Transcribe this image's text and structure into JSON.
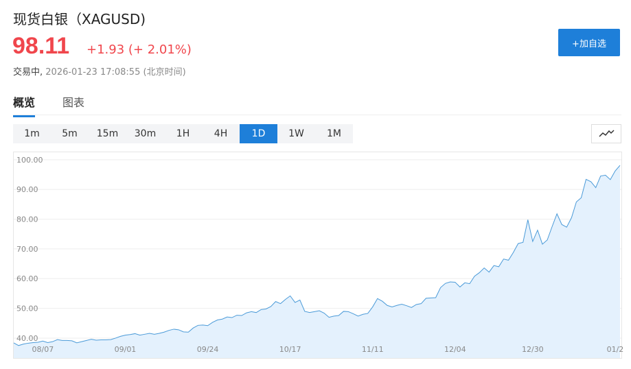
{
  "header": {
    "title": "现货白银（XAGUSD)",
    "price": "98.11",
    "change": "+1.93",
    "change_pct": "(+ 2.01%)",
    "status": "交易中,",
    "time": "2026-01-23 17:08:55",
    "timezone": "(北京时间)",
    "button": "+加自选"
  },
  "tabs": {
    "items": [
      "概览",
      "图表"
    ],
    "active": 0
  },
  "periods": {
    "items": [
      "1m",
      "5m",
      "15m",
      "30m",
      "1H",
      "4H",
      "1D",
      "1W",
      "1M"
    ],
    "active": 6
  },
  "chart_data": {
    "type": "area",
    "color": "#4a9ad8",
    "fill": "#e4f1fd",
    "grid": true,
    "categories": [
      null,
      null,
      null,
      null,
      null,
      null,
      "08/07",
      null,
      null,
      null,
      null,
      null,
      null,
      null,
      null,
      null,
      null,
      null,
      null,
      null,
      null,
      null,
      null,
      "09/01",
      null,
      null,
      null,
      null,
      null,
      null,
      null,
      null,
      null,
      null,
      null,
      null,
      null,
      null,
      null,
      null,
      "09/24",
      null,
      null,
      null,
      null,
      null,
      null,
      null,
      null,
      null,
      null,
      null,
      null,
      null,
      null,
      null,
      null,
      "10/17",
      null,
      null,
      null,
      null,
      null,
      null,
      null,
      null,
      null,
      null,
      null,
      null,
      null,
      null,
      null,
      null,
      "11/11",
      null,
      null,
      null,
      null,
      null,
      null,
      null,
      null,
      null,
      null,
      null,
      null,
      null,
      null,
      null,
      null,
      "12/04",
      null,
      null,
      null,
      null,
      null,
      null,
      null,
      null,
      null,
      null,
      null,
      null,
      null,
      null,
      null,
      "12/30",
      null,
      null,
      null,
      null,
      null,
      null,
      null,
      null,
      null,
      null,
      null,
      null,
      null,
      null,
      null,
      null,
      "01/2",
      null
    ],
    "values": [
      38.4,
      37.5,
      38.0,
      38.3,
      38.5,
      38.6,
      39.0,
      38.5,
      38.8,
      39.5,
      39.2,
      39.2,
      39.1,
      38.4,
      38.8,
      39.2,
      39.6,
      39.3,
      39.4,
      39.4,
      39.5,
      40.0,
      40.6,
      41.0,
      41.2,
      41.5,
      41.0,
      41.3,
      41.6,
      41.3,
      41.6,
      42.0,
      42.6,
      43.0,
      42.8,
      42.1,
      42.0,
      43.4,
      44.3,
      44.4,
      44.2,
      45.3,
      46.1,
      46.4,
      47.1,
      46.9,
      47.7,
      47.6,
      48.5,
      48.9,
      48.6,
      49.6,
      49.8,
      50.6,
      52.3,
      51.6,
      53.0,
      54.2,
      52.0,
      52.8,
      49.0,
      48.6,
      48.9,
      49.2,
      48.4,
      47.0,
      47.4,
      47.6,
      49.0,
      48.9,
      48.2,
      47.4,
      48.0,
      48.3,
      50.5,
      53.3,
      52.4,
      51.0,
      50.5,
      51.0,
      51.4,
      50.9,
      50.3,
      51.3,
      51.6,
      53.4,
      53.5,
      53.6,
      57.0,
      58.4,
      58.9,
      58.8,
      57.2,
      58.6,
      58.3,
      60.8,
      62.0,
      63.6,
      62.2,
      64.4,
      64.0,
      66.6,
      66.2,
      68.8,
      71.8,
      72.2,
      79.8,
      72.5,
      76.3,
      71.6,
      73.0,
      77.5,
      81.8,
      78.2,
      77.3,
      80.5,
      85.8,
      87.2,
      93.4,
      92.6,
      90.6,
      94.5,
      94.8,
      93.3,
      96.2,
      98.11
    ],
    "ylim": [
      33.3,
      102.5
    ],
    "yticks": [
      {
        "value": 40,
        "label": "40.00"
      },
      {
        "value": 50,
        "label": "50.00"
      },
      {
        "value": 60,
        "label": "60.00"
      },
      {
        "value": 70,
        "label": "70.00"
      },
      {
        "value": 80,
        "label": "80.00"
      },
      {
        "value": 90,
        "label": "90.00"
      },
      {
        "value": 100,
        "label": "100.00"
      }
    ]
  }
}
